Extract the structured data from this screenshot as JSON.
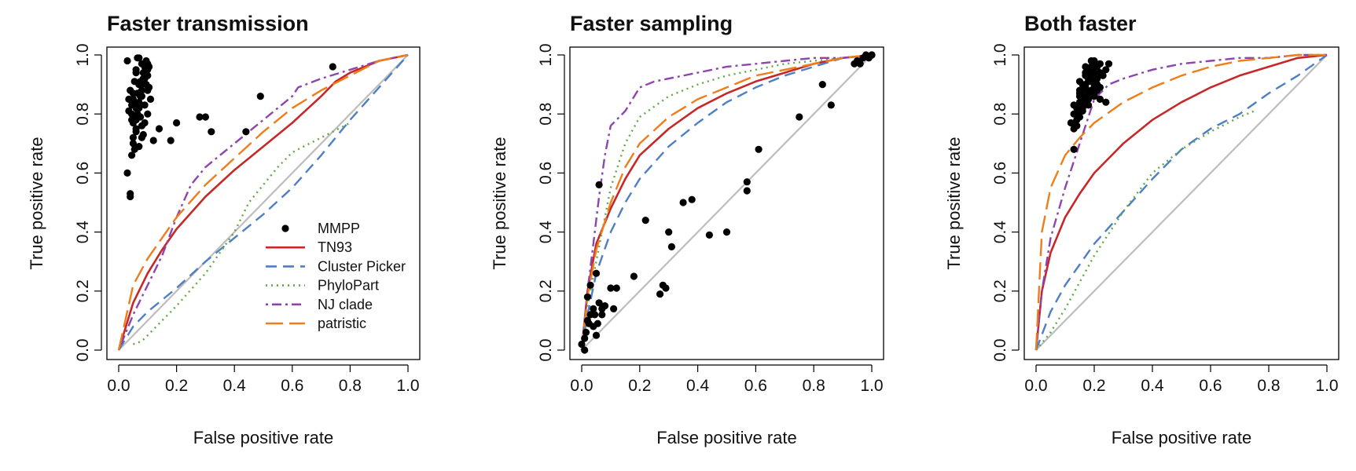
{
  "figure": {
    "background": "#ffffff"
  },
  "chart_data": [
    {
      "type": "line",
      "title": "Faster transmission",
      "xlabel": "False positive rate",
      "ylabel": "True positive rate",
      "xlim": [
        0,
        1
      ],
      "ylim": [
        0,
        1
      ],
      "xticks": [
        "0.0",
        "0.2",
        "0.4",
        "0.6",
        "0.8",
        "1.0"
      ],
      "yticks": [
        "0.0",
        "0.2",
        "0.4",
        "0.6",
        "0.8",
        "1.0"
      ],
      "diagonal": true,
      "legend": {
        "placement": "bottom-right",
        "entries": [
          "MMPP",
          "TN93",
          "Cluster Picker",
          "PhyloPart",
          "NJ clade",
          "patristic"
        ]
      },
      "series": [
        {
          "name": "TN93",
          "color": "#c62828",
          "dash": "solid",
          "x": [
            0,
            0.05,
            0.1,
            0.15,
            0.2,
            0.3,
            0.4,
            0.5,
            0.6,
            0.7,
            0.75,
            0.8,
            0.9,
            1.0
          ],
          "y": [
            0,
            0.16,
            0.26,
            0.34,
            0.41,
            0.52,
            0.61,
            0.69,
            0.77,
            0.86,
            0.91,
            0.94,
            0.98,
            1.0
          ]
        },
        {
          "name": "Cluster Picker",
          "color": "#4e7fc4",
          "dash": "long",
          "x": [
            0,
            0.05,
            0.1,
            0.2,
            0.3,
            0.4,
            0.5,
            0.6,
            0.7,
            0.8,
            0.9,
            1.0
          ],
          "y": [
            0,
            0.08,
            0.13,
            0.21,
            0.3,
            0.38,
            0.46,
            0.55,
            0.66,
            0.78,
            0.89,
            1.0
          ]
        },
        {
          "name": "PhyloPart",
          "color": "#5fa845",
          "dash": "dotted",
          "x": [
            0.05,
            0.08,
            0.12,
            0.2,
            0.3,
            0.4,
            0.45,
            0.5,
            0.55,
            0.6,
            0.7,
            0.8
          ],
          "y": [
            0.02,
            0.03,
            0.07,
            0.15,
            0.26,
            0.4,
            0.5,
            0.56,
            0.62,
            0.67,
            0.72,
            0.77
          ]
        },
        {
          "name": "NJ clade",
          "color": "#8e44ad",
          "dash": "dashdot",
          "x": [
            0,
            0.05,
            0.1,
            0.15,
            0.2,
            0.25,
            0.3,
            0.4,
            0.5,
            0.6,
            0.62,
            0.7,
            0.8,
            0.9,
            1.0
          ],
          "y": [
            0,
            0.12,
            0.22,
            0.32,
            0.45,
            0.56,
            0.62,
            0.7,
            0.78,
            0.86,
            0.89,
            0.92,
            0.95,
            0.98,
            1.0
          ]
        },
        {
          "name": "patristic",
          "color": "#ee7d1a",
          "dash": "longdash",
          "x": [
            0,
            0.05,
            0.1,
            0.15,
            0.2,
            0.3,
            0.4,
            0.5,
            0.6,
            0.7,
            0.8,
            0.9,
            1.0
          ],
          "y": [
            0,
            0.22,
            0.31,
            0.38,
            0.45,
            0.56,
            0.65,
            0.74,
            0.82,
            0.88,
            0.93,
            0.98,
            1.0
          ]
        }
      ],
      "points": {
        "name": "MMPP",
        "color": "#000000",
        "x": [
          0.03,
          0.04,
          0.04,
          0.045,
          0.05,
          0.05,
          0.055,
          0.06,
          0.06,
          0.065,
          0.07,
          0.07,
          0.075,
          0.08,
          0.08,
          0.085,
          0.09,
          0.09,
          0.095,
          0.1,
          0.1,
          0.105,
          0.11,
          0.035,
          0.045,
          0.05,
          0.055,
          0.06,
          0.065,
          0.07,
          0.075,
          0.08,
          0.085,
          0.09,
          0.1,
          0.105,
          0.04,
          0.05,
          0.06,
          0.07,
          0.08,
          0.09,
          0.1,
          0.055,
          0.065,
          0.075,
          0.085,
          0.095,
          0.045,
          0.06,
          0.07,
          0.08,
          0.09,
          0.035,
          0.05,
          0.06,
          0.08,
          0.1,
          0.12,
          0.14,
          0.18,
          0.2,
          0.28,
          0.3,
          0.32,
          0.44,
          0.49,
          0.74,
          0.045,
          0.05,
          0.03
        ],
        "y": [
          0.6,
          0.52,
          0.53,
          0.66,
          0.7,
          0.72,
          0.68,
          0.74,
          0.78,
          0.8,
          0.82,
          0.84,
          0.86,
          0.88,
          0.9,
          0.92,
          0.94,
          0.96,
          0.98,
          0.97,
          0.93,
          0.89,
          0.85,
          0.81,
          0.83,
          0.87,
          0.91,
          0.95,
          0.99,
          0.99,
          0.79,
          0.76,
          0.73,
          0.77,
          0.8,
          0.96,
          0.88,
          0.85,
          0.82,
          0.9,
          0.86,
          0.92,
          0.88,
          0.84,
          0.87,
          0.91,
          0.94,
          0.9,
          0.78,
          0.75,
          0.69,
          0.72,
          0.83,
          0.85,
          0.79,
          0.94,
          0.97,
          0.95,
          0.71,
          0.75,
          0.71,
          0.77,
          0.79,
          0.79,
          0.74,
          0.74,
          0.86,
          0.96,
          0.8,
          0.77,
          0.98
        ]
      }
    },
    {
      "type": "line",
      "title": "Faster sampling",
      "xlabel": "False positive rate",
      "ylabel": "True positive rate",
      "xlim": [
        0,
        1
      ],
      "ylim": [
        0,
        1
      ],
      "xticks": [
        "0.0",
        "0.2",
        "0.4",
        "0.6",
        "0.8",
        "1.0"
      ],
      "yticks": [
        "0.0",
        "0.2",
        "0.4",
        "0.6",
        "0.8",
        "1.0"
      ],
      "diagonal": true,
      "series": [
        {
          "name": "TN93",
          "color": "#c62828",
          "dash": "solid",
          "x": [
            0,
            0.02,
            0.05,
            0.1,
            0.15,
            0.2,
            0.3,
            0.4,
            0.5,
            0.6,
            0.7,
            0.8,
            0.9,
            1.0
          ],
          "y": [
            0,
            0.2,
            0.36,
            0.48,
            0.58,
            0.66,
            0.75,
            0.82,
            0.87,
            0.91,
            0.94,
            0.97,
            0.99,
            1.0
          ]
        },
        {
          "name": "Cluster Picker",
          "color": "#4e7fc4",
          "dash": "long",
          "x": [
            0,
            0.02,
            0.05,
            0.1,
            0.15,
            0.2,
            0.3,
            0.4,
            0.5,
            0.6,
            0.7,
            0.8,
            0.9,
            1.0
          ],
          "y": [
            0,
            0.12,
            0.26,
            0.4,
            0.5,
            0.58,
            0.69,
            0.77,
            0.84,
            0.89,
            0.93,
            0.96,
            0.99,
            1.0
          ]
        },
        {
          "name": "PhyloPart",
          "color": "#5fa845",
          "dash": "dotted",
          "x": [
            0,
            0.02,
            0.05,
            0.1,
            0.15,
            0.2,
            0.3,
            0.4,
            0.5,
            0.6,
            0.7,
            0.8,
            0.9,
            1.0
          ],
          "y": [
            0,
            0.15,
            0.3,
            0.55,
            0.7,
            0.79,
            0.86,
            0.9,
            0.93,
            0.95,
            0.97,
            0.98,
            0.99,
            1.0
          ]
        },
        {
          "name": "NJ clade",
          "color": "#8e44ad",
          "dash": "dashdot",
          "x": [
            0,
            0.02,
            0.04,
            0.06,
            0.08,
            0.1,
            0.15,
            0.2,
            0.25,
            0.3,
            0.4,
            0.5,
            0.6,
            0.7,
            0.8,
            0.9,
            1.0
          ],
          "y": [
            0,
            0.2,
            0.36,
            0.52,
            0.66,
            0.76,
            0.81,
            0.89,
            0.91,
            0.92,
            0.94,
            0.96,
            0.97,
            0.98,
            0.99,
            0.99,
            1.0
          ]
        },
        {
          "name": "patristic",
          "color": "#ee7d1a",
          "dash": "longdash",
          "x": [
            0,
            0.02,
            0.05,
            0.1,
            0.15,
            0.2,
            0.3,
            0.4,
            0.5,
            0.6,
            0.7,
            0.8,
            0.9,
            1.0
          ],
          "y": [
            0,
            0.18,
            0.34,
            0.5,
            0.62,
            0.7,
            0.79,
            0.85,
            0.89,
            0.93,
            0.95,
            0.97,
            0.99,
            1.0
          ]
        }
      ],
      "points": {
        "name": "MMPP",
        "color": "#000000",
        "x": [
          0,
          0.01,
          0.01,
          0.02,
          0.02,
          0.03,
          0.03,
          0.04,
          0.04,
          0.05,
          0.05,
          0.06,
          0.06,
          0.07,
          0.07,
          0.08,
          0.1,
          0.11,
          0.12,
          0.18,
          0.22,
          0.27,
          0.28,
          0.29,
          0.3,
          0.31,
          0.35,
          0.38,
          0.44,
          0.5,
          0.57,
          0.57,
          0.61,
          0.75,
          0.83,
          0.86,
          0.94,
          0.95,
          0.96,
          0.97,
          0.98,
          0.99,
          1.0,
          1.0,
          0.015,
          0.025,
          0.045,
          0.055
        ],
        "y": [
          0.02,
          0.04,
          0.0,
          0.1,
          0.18,
          0.22,
          0.12,
          0.08,
          0.14,
          0.26,
          0.05,
          0.16,
          0.56,
          0.12,
          0.14,
          0.15,
          0.21,
          0.14,
          0.21,
          0.25,
          0.44,
          0.19,
          0.22,
          0.21,
          0.4,
          0.35,
          0.5,
          0.51,
          0.39,
          0.4,
          0.54,
          0.57,
          0.68,
          0.79,
          0.9,
          0.83,
          0.97,
          0.98,
          0.97,
          0.99,
          1.0,
          0.99,
          1.0,
          1.0,
          0.06,
          0.09,
          0.12,
          0.09
        ]
      }
    },
    {
      "type": "line",
      "title": "Both faster",
      "xlabel": "False positive rate",
      "ylabel": "True positive rate",
      "xlim": [
        0,
        1
      ],
      "ylim": [
        0,
        1
      ],
      "xticks": [
        "0.0",
        "0.2",
        "0.4",
        "0.6",
        "0.8",
        "1.0"
      ],
      "yticks": [
        "0.0",
        "0.2",
        "0.4",
        "0.6",
        "0.8",
        "1.0"
      ],
      "diagonal": true,
      "series": [
        {
          "name": "TN93",
          "color": "#c62828",
          "dash": "solid",
          "x": [
            0,
            0.02,
            0.05,
            0.1,
            0.15,
            0.2,
            0.3,
            0.4,
            0.5,
            0.6,
            0.7,
            0.8,
            0.9,
            1.0
          ],
          "y": [
            0,
            0.2,
            0.33,
            0.45,
            0.53,
            0.6,
            0.7,
            0.78,
            0.84,
            0.89,
            0.93,
            0.96,
            0.99,
            1.0
          ]
        },
        {
          "name": "Cluster Picker",
          "color": "#4e7fc4",
          "dash": "long",
          "x": [
            0,
            0.05,
            0.1,
            0.15,
            0.2,
            0.3,
            0.4,
            0.5,
            0.6,
            0.7,
            0.8,
            0.9,
            1.0
          ],
          "y": [
            0,
            0.13,
            0.22,
            0.29,
            0.36,
            0.47,
            0.58,
            0.68,
            0.75,
            0.8,
            0.87,
            0.93,
            1.0
          ]
        },
        {
          "name": "PhyloPart",
          "color": "#5fa845",
          "dash": "dotted",
          "x": [
            0,
            0.05,
            0.1,
            0.2,
            0.3,
            0.4,
            0.5,
            0.6,
            0.7,
            0.75
          ],
          "y": [
            0,
            0.06,
            0.14,
            0.32,
            0.47,
            0.6,
            0.68,
            0.74,
            0.79,
            0.81
          ]
        },
        {
          "name": "NJ clade",
          "color": "#8e44ad",
          "dash": "dashdot",
          "x": [
            0,
            0.02,
            0.05,
            0.1,
            0.15,
            0.2,
            0.25,
            0.3,
            0.4,
            0.5,
            0.6,
            0.7,
            0.8,
            0.9,
            1.0
          ],
          "y": [
            0,
            0.2,
            0.38,
            0.55,
            0.7,
            0.85,
            0.9,
            0.92,
            0.95,
            0.97,
            0.98,
            0.99,
            0.99,
            1.0,
            1.0
          ]
        },
        {
          "name": "patristic",
          "color": "#ee7d1a",
          "dash": "longdash",
          "x": [
            0,
            0.02,
            0.05,
            0.1,
            0.15,
            0.2,
            0.3,
            0.4,
            0.5,
            0.6,
            0.7,
            0.8,
            0.9,
            1.0
          ],
          "y": [
            0,
            0.4,
            0.55,
            0.66,
            0.72,
            0.77,
            0.84,
            0.89,
            0.93,
            0.96,
            0.98,
            0.99,
            1.0,
            1.0
          ]
        }
      ],
      "points": {
        "name": "MMPP",
        "color": "#000000",
        "x": [
          0.12,
          0.13,
          0.13,
          0.14,
          0.14,
          0.15,
          0.15,
          0.15,
          0.16,
          0.16,
          0.16,
          0.17,
          0.17,
          0.17,
          0.18,
          0.18,
          0.18,
          0.19,
          0.19,
          0.19,
          0.2,
          0.2,
          0.2,
          0.21,
          0.21,
          0.22,
          0.22,
          0.23,
          0.24,
          0.25,
          0.14,
          0.15,
          0.16,
          0.17,
          0.18,
          0.19,
          0.2,
          0.21,
          0.22,
          0.13,
          0.15,
          0.17,
          0.19,
          0.16,
          0.18,
          0.2,
          0.14,
          0.16,
          0.18,
          0.2,
          0.22,
          0.17,
          0.19,
          0.21,
          0.15,
          0.13,
          0.24,
          0.2
        ],
        "y": [
          0.77,
          0.68,
          0.83,
          0.76,
          0.8,
          0.79,
          0.84,
          0.88,
          0.82,
          0.86,
          0.9,
          0.85,
          0.89,
          0.93,
          0.87,
          0.91,
          0.95,
          0.88,
          0.92,
          0.96,
          0.86,
          0.9,
          0.94,
          0.92,
          0.96,
          0.89,
          0.97,
          0.93,
          0.95,
          0.97,
          0.82,
          0.86,
          0.88,
          0.9,
          0.92,
          0.94,
          0.98,
          0.9,
          0.85,
          0.8,
          0.87,
          0.94,
          0.91,
          0.83,
          0.85,
          0.89,
          0.78,
          0.81,
          0.83,
          0.87,
          0.94,
          0.96,
          0.98,
          0.88,
          0.91,
          0.75,
          0.84,
          0.96
        ]
      }
    }
  ]
}
